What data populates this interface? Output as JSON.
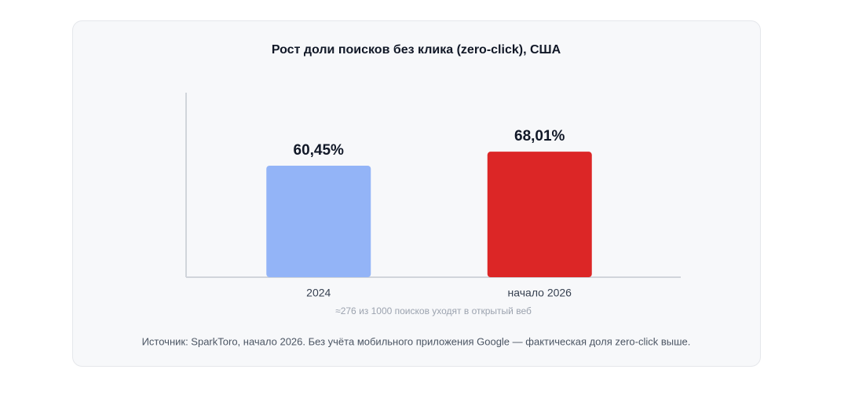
{
  "chart_data": {
    "type": "bar",
    "title": "Рост доли поисков без клика (zero-click), США",
    "categories": [
      "2024",
      "начало 2026"
    ],
    "values": [
      60.45,
      68.01
    ],
    "value_labels": [
      "60,45%",
      "68,01%"
    ],
    "colors": [
      "#93b4f7",
      "#dc2626"
    ],
    "ylim": [
      0,
      100
    ],
    "annotation": "≈276 из 1000 поисков уходят в открытый веб",
    "source": "Источник: SparkToro, начало 2026. Без учёта мобильного приложения Google — фактическая доля zero-click выше."
  }
}
